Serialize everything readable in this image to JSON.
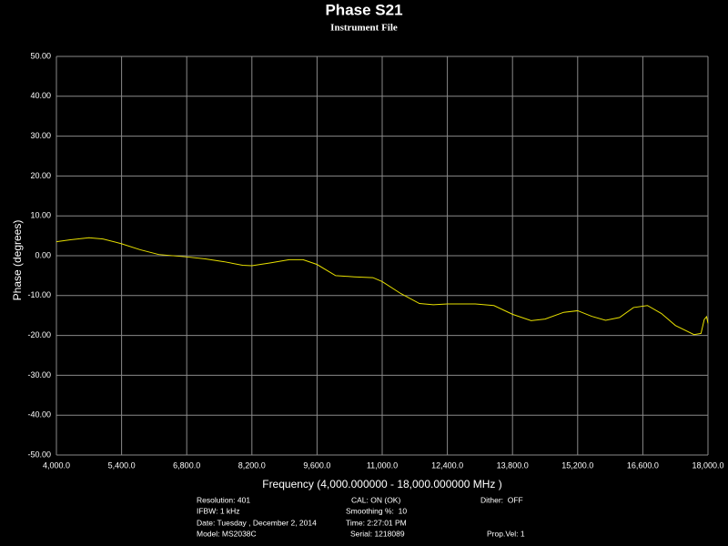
{
  "chart_data": {
    "type": "line",
    "title": "Phase S21",
    "subtitle": "Instrument File",
    "x_label": "Frequency (4,000.000000 - 18,000.000000 MHz )",
    "y_label": "Phase (degrees)",
    "x": [
      4000,
      4300,
      4700,
      5000,
      5400,
      5800,
      6200,
      6800,
      7200,
      7600,
      8000,
      8200,
      8600,
      9000,
      9300,
      9600,
      10000,
      10400,
      10800,
      11000,
      11400,
      11800,
      12100,
      12400,
      13000,
      13400,
      13800,
      14200,
      14500,
      14900,
      15200,
      15500,
      15800,
      16100,
      16400,
      16700,
      17000,
      17300,
      17700,
      17850,
      17920,
      17970,
      18000
    ],
    "series": [
      {
        "name": "Phase S21",
        "color": "#e8e000",
        "values": [
          3.5,
          4.0,
          4.5,
          4.2,
          3.0,
          1.5,
          0.3,
          -0.3,
          -0.8,
          -1.5,
          -2.4,
          -2.5,
          -1.8,
          -1.0,
          -1.0,
          -2.2,
          -5.0,
          -5.3,
          -5.5,
          -6.5,
          -9.5,
          -12.0,
          -12.3,
          -12.1,
          -12.1,
          -12.5,
          -14.7,
          -16.3,
          -15.9,
          -14.2,
          -13.8,
          -15.2,
          -16.2,
          -15.5,
          -13.0,
          -12.5,
          -14.5,
          -17.5,
          -19.8,
          -19.5,
          -16.0,
          -15.3,
          -17.0
        ]
      }
    ],
    "xlim": [
      4000,
      18000
    ],
    "ylim": [
      -50,
      50
    ],
    "xticks": [
      {
        "value": 4000,
        "label": "4,000.0"
      },
      {
        "value": 5400,
        "label": "5,400.0"
      },
      {
        "value": 6800,
        "label": "6,800.0"
      },
      {
        "value": 8200,
        "label": "8,200.0"
      },
      {
        "value": 9600,
        "label": "9,600.0"
      },
      {
        "value": 11000,
        "label": "11,000.0"
      },
      {
        "value": 12400,
        "label": "12,400.0"
      },
      {
        "value": 13800,
        "label": "13,800.0"
      },
      {
        "value": 15200,
        "label": "15,200.0"
      },
      {
        "value": 16600,
        "label": "16,600.0"
      },
      {
        "value": 18000,
        "label": "18,000.0"
      }
    ],
    "yticks": [
      {
        "value": 50,
        "label": "50.00"
      },
      {
        "value": 40,
        "label": "40.00"
      },
      {
        "value": 30,
        "label": "30.00"
      },
      {
        "value": 20,
        "label": "20.00"
      },
      {
        "value": 10,
        "label": "10.00"
      },
      {
        "value": 0,
        "label": "0.00"
      },
      {
        "value": -10,
        "label": "-10.00"
      },
      {
        "value": -20,
        "label": "-20.00"
      },
      {
        "value": -30,
        "label": "-30.00"
      },
      {
        "value": -40,
        "label": "-40.00"
      },
      {
        "value": -50,
        "label": "-50.00"
      }
    ],
    "grid": true,
    "annotations": [
      "Resolution: 401",
      "IFBW: 1 kHz",
      "Date: Tuesday , December 2, 2014",
      "Model: MS2038C",
      "CAL: ON (OK)",
      "Smoothing %:  10",
      "Time: 2:27:01 PM",
      "Serial: 1218089",
      "Dither:  OFF",
      "Prop.Vel: 1"
    ]
  }
}
